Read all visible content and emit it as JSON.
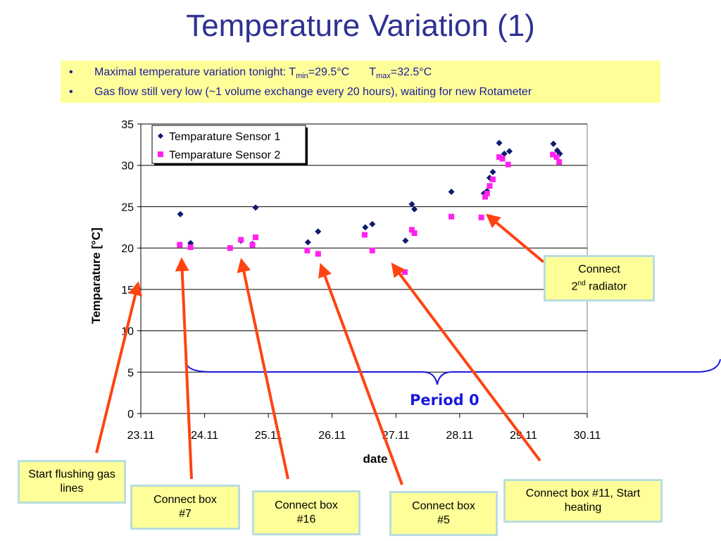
{
  "slide": {
    "title": "Temperature Variation (1)",
    "notes": {
      "bullet": "•",
      "line1_prefix": "Maximal temperature variation tonight: T",
      "line1_tmin_sub": "min",
      "line1_tmin_val": "=29.5°C",
      "line1_tmax_T": "T",
      "line1_tmax_sub": "max",
      "line1_tmax_val": "=32.5°C",
      "line2": "Gas flow still very low (~1 volume exchange every 20 hours), waiting for new Rotameter"
    },
    "period_label": "Period 0",
    "callouts": {
      "start_flushing": "Start flushing gas lines",
      "box7": "Connect box #7",
      "box16": "Connect box #16",
      "box5": "Connect box #5",
      "box11": "Connect box #11, Start heating",
      "radiator_line1": "Connect",
      "radiator_num": "2",
      "radiator_sup": "nd",
      "radiator_rest": " radiator"
    },
    "colors": {
      "title": "#2e3192",
      "note_text": "#1a1a99",
      "note_bg": "#ffff99",
      "series1": "#0d1a6e",
      "series2": "#ff22ee",
      "arrow": "#ff4411",
      "brace": "#1a1ad9",
      "callout_border": "#b8dde0"
    }
  },
  "chart_data": {
    "type": "scatter",
    "xlabel": "date",
    "ylabel": "Temparature [°C]",
    "xlim": [
      23.11,
      30.11
    ],
    "ylim": [
      0,
      35
    ],
    "x_ticks": [
      "23.11",
      "24.11",
      "25.11",
      "26.11",
      "27.11",
      "28.11",
      "29.11",
      "30.11"
    ],
    "y_ticks": [
      0,
      5,
      10,
      15,
      20,
      25,
      30,
      35
    ],
    "grid": "horizontal",
    "legend_position": "top-left",
    "series": [
      {
        "name": "Temparature Sensor 1",
        "marker": "diamond",
        "color": "#0d1a6e",
        "points": [
          [
            23.62,
            24.1
          ],
          [
            23.78,
            20.6
          ],
          [
            24.4,
            20.0
          ],
          [
            24.57,
            20.9
          ],
          [
            24.75,
            20.5
          ],
          [
            24.8,
            24.9
          ],
          [
            25.62,
            20.7
          ],
          [
            25.78,
            22.0
          ],
          [
            26.52,
            22.5
          ],
          [
            26.63,
            22.9
          ],
          [
            27.15,
            20.9
          ],
          [
            27.25,
            25.3
          ],
          [
            27.29,
            24.7
          ],
          [
            27.87,
            26.8
          ],
          [
            28.38,
            26.6
          ],
          [
            28.43,
            26.9
          ],
          [
            28.47,
            28.5
          ],
          [
            28.52,
            29.2
          ],
          [
            28.62,
            32.7
          ],
          [
            28.7,
            31.4
          ],
          [
            28.78,
            31.7
          ],
          [
            29.47,
            32.6
          ],
          [
            29.53,
            31.8
          ],
          [
            29.57,
            31.4
          ]
        ]
      },
      {
        "name": "Temparature Sensor 2",
        "marker": "square",
        "color": "#ff22ee",
        "points": [
          [
            23.61,
            20.4
          ],
          [
            23.78,
            20.1
          ],
          [
            24.4,
            20.0
          ],
          [
            24.57,
            21.0
          ],
          [
            24.75,
            20.4
          ],
          [
            24.8,
            21.3
          ],
          [
            25.61,
            19.7
          ],
          [
            25.78,
            19.3
          ],
          [
            26.51,
            21.6
          ],
          [
            26.63,
            19.7
          ],
          [
            27.14,
            17.1
          ],
          [
            27.25,
            22.2
          ],
          [
            27.29,
            21.8
          ],
          [
            27.87,
            23.8
          ],
          [
            28.34,
            23.7
          ],
          [
            28.4,
            26.2
          ],
          [
            28.43,
            26.6
          ],
          [
            28.47,
            27.5
          ],
          [
            28.52,
            28.3
          ],
          [
            28.62,
            31.0
          ],
          [
            28.67,
            30.8
          ],
          [
            28.76,
            30.1
          ],
          [
            29.46,
            31.3
          ],
          [
            29.52,
            31.0
          ],
          [
            29.56,
            30.4
          ]
        ]
      }
    ]
  }
}
